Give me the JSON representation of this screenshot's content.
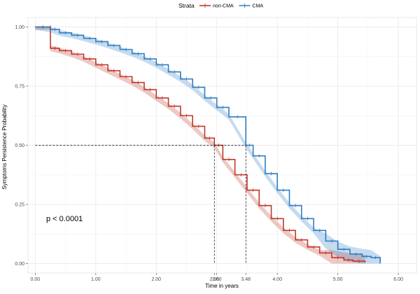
{
  "chart_data": {
    "type": "line",
    "subtype": "kaplan-meier survival curve with confidence bands",
    "xlabel": "Time in years",
    "ylabel": "Symptoms Persistence Probability",
    "xlim": [
      -0.12,
      6.3
    ],
    "ylim": [
      -0.04,
      1.04
    ],
    "x_ticks": [
      0,
      1,
      2,
      3,
      4,
      5,
      6
    ],
    "x_tick_labels": [
      "0.00",
      "1.00",
      "2.00",
      "3.00",
      "4.00",
      "5.00",
      "6.00"
    ],
    "extra_x_ticks": [
      2.96,
      3.48
    ],
    "extra_x_tick_labels": [
      "2.96",
      "3.48"
    ],
    "y_ticks": [
      0,
      0.25,
      0.5,
      0.75,
      1.0
    ],
    "y_tick_labels": [
      "0.00",
      "0.25",
      "0.50",
      "0.75",
      "1.00"
    ],
    "grid": true,
    "legend": {
      "title": "Strata",
      "position": "top"
    },
    "annotation": "p < 0.0001",
    "median_line": {
      "y": 0.5,
      "x_values": [
        2.96,
        3.48
      ]
    },
    "series": [
      {
        "name": "non-CMA",
        "color": "#c0392b",
        "x": [
          0,
          0.25,
          0.25,
          0.4,
          0.6,
          0.8,
          1.0,
          1.2,
          1.4,
          1.6,
          1.8,
          2.0,
          2.2,
          2.4,
          2.6,
          2.8,
          2.96,
          3.1,
          3.3,
          3.5,
          3.7,
          3.9,
          4.1,
          4.3,
          4.5,
          4.7,
          4.9,
          5.1,
          5.25,
          5.45
        ],
        "y": [
          1.0,
          1.0,
          0.91,
          0.9,
          0.885,
          0.865,
          0.84,
          0.815,
          0.79,
          0.765,
          0.735,
          0.7,
          0.665,
          0.625,
          0.58,
          0.53,
          0.5,
          0.44,
          0.375,
          0.31,
          0.245,
          0.19,
          0.14,
          0.1,
          0.07,
          0.045,
          0.025,
          0.015,
          0.01,
          0.005
        ]
      },
      {
        "name": "CMA",
        "color": "#2f7ec4",
        "x": [
          0,
          0.25,
          0.4,
          0.6,
          0.8,
          1.0,
          1.2,
          1.4,
          1.6,
          1.8,
          2.0,
          2.2,
          2.4,
          2.6,
          2.8,
          3.0,
          3.2,
          3.48,
          3.6,
          3.8,
          4.0,
          4.2,
          4.4,
          4.6,
          4.8,
          5.0,
          5.2,
          5.4,
          5.55,
          5.7
        ],
        "y": [
          1.0,
          0.99,
          0.975,
          0.965,
          0.952,
          0.938,
          0.922,
          0.905,
          0.887,
          0.865,
          0.84,
          0.81,
          0.78,
          0.745,
          0.7,
          0.66,
          0.62,
          0.5,
          0.455,
          0.38,
          0.31,
          0.245,
          0.19,
          0.14,
          0.095,
          0.06,
          0.04,
          0.03,
          0.025,
          0.0
        ]
      }
    ]
  }
}
